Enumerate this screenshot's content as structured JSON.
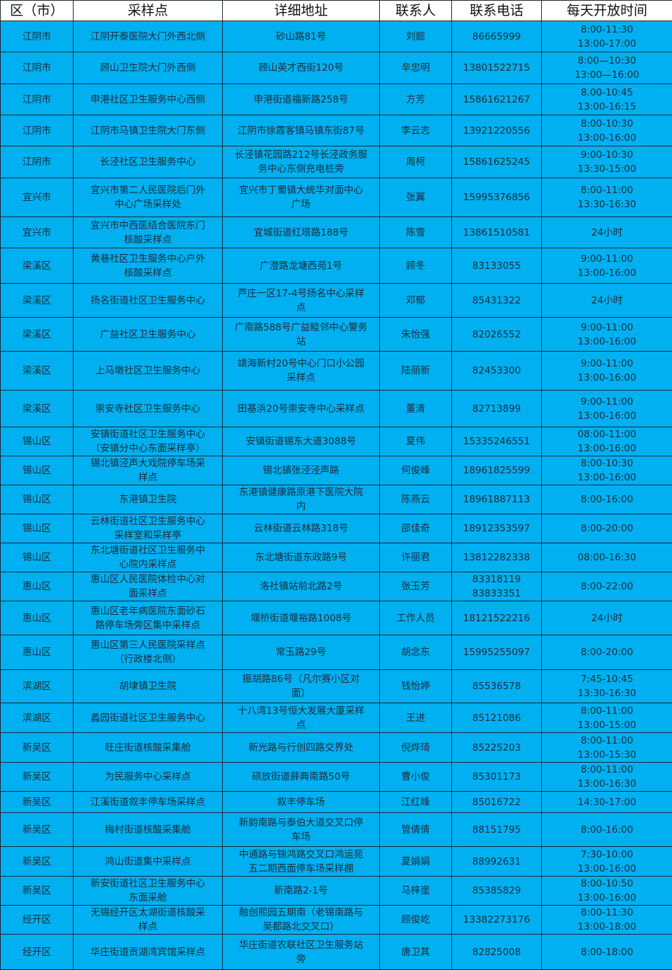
{
  "table": {
    "headers": [
      "区（市）",
      "采样点",
      "详细地址",
      "联系人",
      "联系电话",
      "每天开放时间"
    ],
    "background_color": "#00b0f0",
    "rows": [
      [
        "江阴市",
        "江阴开泰医院大门外西北侧",
        "砂山路81号",
        "刘懿",
        "86665999",
        "8:00-11:30\n13:00-17:00"
      ],
      [
        "江阴市",
        "顾山卫生院大门外西侧",
        "顾山英才西街120号",
        "辛忠明",
        "13801522715",
        "8:00—10:30\n13:00—16:00"
      ],
      [
        "江阴市",
        "申港社区卫生服务中心西侧",
        "申港街道福新路258号",
        "方芳",
        "15861621267",
        "8.00-10:45\n13:00-16:15"
      ],
      [
        "江阴市",
        "江阴市马镇卫生院大门东侧",
        "江阴市徐霞客镇马镇东街87号",
        "李云志",
        "13921220556",
        "8:00-10:30\n13:00-16:00"
      ],
      [
        "江阴市",
        "长泾社区卫生服务中心",
        "长泾镇花园路212号长泾政务服\n务中心东侧充电桩旁",
        "周柯",
        "15861625245",
        "9:00-10:30\n13:30-15:00"
      ],
      [
        "宜兴市",
        "宜兴市第二人民医院后门外\n中心广场采样处",
        "宜兴市丁蜀镇大统华对面中心\n广场",
        "张翼",
        "15995376856",
        "8:00-11:00\n13:30-16:30"
      ],
      [
        "宜兴市",
        "宜兴市中西医结合医院东门\n核酸采样点",
        "宜城街道红塔路188号",
        "陈雪",
        "13861510581",
        "24小时"
      ],
      [
        "梁溪区",
        "黄巷社区卫生服务中心户外\n核酸采样点",
        "广澄路龙塘西苑1号",
        "顾冬",
        "83133055",
        "9:00-11:00\n13:00-16:00"
      ],
      [
        "梁溪区",
        "扬名街道社区卫生服务中心",
        "芦庄一区17-4号扬名中心采样\n点",
        "邓郁",
        "85431322",
        "24小时"
      ],
      [
        "梁溪区",
        "广益社区卫生服务中心",
        "广南路588号广益睦邻中心警务\n站",
        "朱怡强",
        "82026552",
        "9:00-11:00\n13:00-16:00"
      ],
      [
        "梁溪区",
        "上马墩社区卫生服务中心",
        "靖海新村20号中心门口小公园\n采样点",
        "陆丽新",
        "82453300",
        "9:00-11:00\n13:00-16:00"
      ],
      [
        "梁溪区",
        "崇安寺社区卫生服务中心",
        "田基浜20号崇安寺中心采样点",
        "董清",
        "82713899",
        "9:00-11:00\n13:00-16:00"
      ],
      [
        "锡山区",
        "安镇街道社区卫生服务中心\n（安镇分中心东面采样亭）",
        "安镇街道锡东大道3088号",
        "夏伟",
        "15335246551",
        "08:00-11:00\n13:00-16:00"
      ],
      [
        "锡山区",
        "锡北镇泾声大戏院停车场采\n样点",
        "锡北镇张泾泾声路",
        "何俊峰",
        "18961825599",
        "8:00-10:30\n13:00-16:00"
      ],
      [
        "锡山区",
        "东港镇卫生院",
        "东港镇健康路原港下医院大院\n内",
        "陈燕云",
        "18961887113",
        "8:00-16:00"
      ],
      [
        "锡山区",
        "云林街道社区卫生服务中心\n采样室和采样亭",
        "云林街道云林路318号",
        "邵佳奇",
        "18912353597",
        "8:00-20:00"
      ],
      [
        "锡山区",
        "东北塘街道社区卫生服务中\n心院内采样点",
        "东北塘街道东政路9号",
        "许丽君",
        "13812282338",
        "08:00-16:30"
      ],
      [
        "惠山区",
        "惠山区人民医院体检中心对\n面采样点",
        "洛社镇站前北路2号",
        "张玉芳",
        "83318119\n83833351",
        "8:00-22:00"
      ],
      [
        "惠山区",
        "惠山区老年病医院东面砂石\n路停车场旁区集中采样点",
        "堰桥街道堰裕路1008号",
        "工作人员",
        "18121522216",
        "24小时"
      ],
      [
        "惠山区",
        "惠山区第三人民医院采样点\n（行政楼北侧）",
        "常玉路29号",
        "胡念东",
        "15995255097",
        "8:00-20:00"
      ],
      [
        "滨湖区",
        "胡埭镇卫生院",
        "振胡路86号（凡尔赛小区对\n面）",
        "钱怡婷",
        "85536578",
        "7:45-10:45\n13:30-16:30"
      ],
      [
        "滨湖区",
        "蠡园街道社区卫生服务中心",
        "十八湾13号恒大发展大厦采样\n点",
        "王进",
        "85121086",
        "8:00-11:00\n13:00-15:00"
      ],
      [
        "新吴区",
        "旺庄街道核酸采集舱",
        "新光路与行创四路交界处",
        "倪烨琦",
        "85225203",
        "8:00-11:00\n13:00-15:30"
      ],
      [
        "新吴区",
        "为民服务中心采样点",
        "硕放街道薛典南路50号",
        "曹小俊",
        "85301173",
        "8:00-11:00\n13:00-16:30"
      ],
      [
        "新吴区",
        "江溪街道叙丰停车场采样点",
        "叙丰停车场",
        "江红峰",
        "85016722",
        "14:30-17:00"
      ],
      [
        "新吴区",
        "梅村街道核酸采集舱",
        "新韵南路与泰伯大道交叉口停\n车场",
        "管倩倩",
        "88151795",
        "8:00-16:00"
      ],
      [
        "新吴区",
        "鸿山街道集中采样点",
        "中通路与锦鸿路交叉口鸿运苑\n五二期西面停车场采样棚",
        "夏娟娟",
        "88992631",
        "7:30-10:00\n13:00-16:00"
      ],
      [
        "新吴区",
        "新安街道社区卫生服务中心\n东面采舱",
        "新南路2-1号",
        "马梓崖",
        "85385829",
        "8:00-10:50\n13:00-16:00"
      ],
      [
        "经开区",
        "无锡经开区太湖街道核酸采\n样点",
        "融创熙园五期南（老锡南路与\n吴都路北交叉口）",
        "顾俊屹",
        "13382273176",
        "8:00-11:30\n13:00-18:00"
      ],
      [
        "经开区",
        "华庄街道贡湖湾宾馆采样点",
        "华庄街道农联社区卫生服务站\n旁",
        "唐卫其",
        "82825008",
        "8:00-18:00"
      ]
    ]
  }
}
